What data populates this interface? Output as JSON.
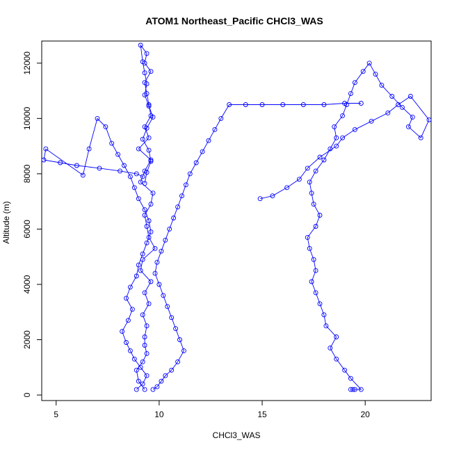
{
  "chart_data": {
    "type": "scatter",
    "title": "ATOM1 Northeast_Pacific CHCl3_WAS",
    "xlabel": "CHCl3_WAS",
    "ylabel": "Altitude (m)",
    "xlim": [
      4.3,
      23.2
    ],
    "ylim": [
      -200,
      12800
    ],
    "xticks": [
      5,
      10,
      15,
      20
    ],
    "yticks": [
      0,
      2000,
      4000,
      6000,
      8000,
      10000,
      12000
    ],
    "style": "points connected by lines (type = b)",
    "color": "#0000ff",
    "grid": false,
    "legend": "none",
    "series": [
      {
        "x": [
          9.3,
          9.0,
          8.9,
          9.2,
          9.4,
          9.3,
          9.3,
          9.4,
          9.2,
          9.5,
          9.3,
          9.6,
          9.1,
          9.2,
          9.8,
          9.5,
          9.4,
          9.3,
          9.6,
          9.7,
          9.1,
          9.3,
          9.6,
          9.0,
          9.5,
          9.3,
          9.6,
          9.5,
          9.4,
          9.3,
          9.6,
          9.3,
          9.4,
          9.1,
          9.2,
          9.3,
          9.4,
          9.3,
          9.5,
          9.7,
          9.4,
          9.2,
          9.5,
          9.6,
          9.4,
          9.3
        ],
        "y": [
          200,
          500,
          900,
          1200,
          1500,
          1800,
          2100,
          2500,
          2900,
          3300,
          3700,
          4100,
          4500,
          4900,
          5300,
          5700,
          6100,
          6500,
          6900,
          7300,
          7700,
          8100,
          8500,
          8900,
          9300,
          9700,
          10100,
          10500,
          10900,
          11300,
          11700,
          12000,
          12350,
          12650,
          12050,
          11650,
          11250,
          10850,
          10450,
          10050,
          9650,
          9250,
          8850,
          8450,
          8050,
          7650
        ]
      },
      {
        "x": [
          19.3,
          19.4,
          19.5,
          19.8,
          19.3,
          19.0,
          18.6,
          18.3,
          18.6,
          18.1,
          18.0,
          17.8,
          17.6,
          17.4,
          17.6,
          17.5,
          17.3,
          17.2,
          17.6,
          17.8,
          17.5,
          17.4,
          17.3,
          17.6,
          18.0,
          18.3,
          18.6,
          18.5,
          18.9,
          19.1,
          19.3,
          19.5,
          19.9,
          20.2,
          20.5,
          20.8,
          21.3,
          21.8,
          22.3,
          22.1,
          22.7,
          23.1,
          22.2,
          21.6,
          21.1,
          20.3,
          19.5,
          18.9,
          18.6,
          17.8,
          17.2,
          16.8,
          16.2,
          15.5,
          14.9
        ],
        "y": [
          200,
          200,
          200,
          200,
          600,
          900,
          1300,
          1700,
          2100,
          2500,
          2900,
          3300,
          3700,
          4100,
          4500,
          4900,
          5300,
          5700,
          6100,
          6500,
          6900,
          7300,
          7700,
          8100,
          8500,
          8900,
          9300,
          9700,
          10100,
          10500,
          10900,
          11300,
          11700,
          12000,
          11600,
          11200,
          10800,
          10400,
          10050,
          9700,
          9300,
          9950,
          10800,
          10500,
          10200,
          9900,
          9600,
          9300,
          9000,
          8600,
          8200,
          7800,
          7500,
          7200,
          7100
        ]
      },
      {
        "x": [
          8.9,
          9.2,
          9.4,
          9.1,
          8.8,
          8.6,
          8.4,
          8.2,
          8.5,
          8.7,
          8.4,
          8.6,
          8.9,
          9.0,
          9.2,
          9.4,
          9.6,
          9.5,
          9.3,
          9.0,
          8.8,
          8.6,
          8.3,
          8.0,
          7.7,
          7.4,
          7.0,
          6.6,
          6.3,
          4.5,
          4.4,
          5.2,
          6.0,
          7.1,
          8.1,
          8.9,
          9.2
        ],
        "y": [
          200,
          400,
          700,
          1000,
          1300,
          1600,
          1900,
          2300,
          2700,
          3100,
          3500,
          3900,
          4300,
          4700,
          5100,
          5500,
          5900,
          6300,
          6700,
          7100,
          7500,
          7900,
          8300,
          8700,
          9100,
          9700,
          10000,
          8900,
          7950,
          8900,
          8500,
          8400,
          8300,
          8200,
          8100,
          8000,
          7900
        ]
      },
      {
        "x": [
          9.7,
          9.9,
          10.1,
          10.3,
          10.6,
          10.9,
          11.2,
          11.0,
          10.8,
          10.6,
          10.4,
          10.2,
          10.0,
          9.8,
          9.9,
          10.1,
          10.3,
          10.5,
          10.7,
          10.9,
          11.1,
          11.3,
          11.5,
          11.8,
          12.1,
          12.4,
          12.7,
          13.0,
          13.4,
          14.2,
          15.0,
          16.0,
          17.0,
          18.0,
          19.0,
          19.8
        ],
        "y": [
          200,
          300,
          500,
          700,
          900,
          1200,
          1600,
          2000,
          2400,
          2800,
          3200,
          3600,
          4000,
          4400,
          4800,
          5200,
          5600,
          6000,
          6400,
          6800,
          7200,
          7600,
          8000,
          8400,
          8800,
          9200,
          9600,
          10000,
          10500,
          10500,
          10500,
          10500,
          10500,
          10500,
          10550,
          10550
        ]
      }
    ]
  }
}
